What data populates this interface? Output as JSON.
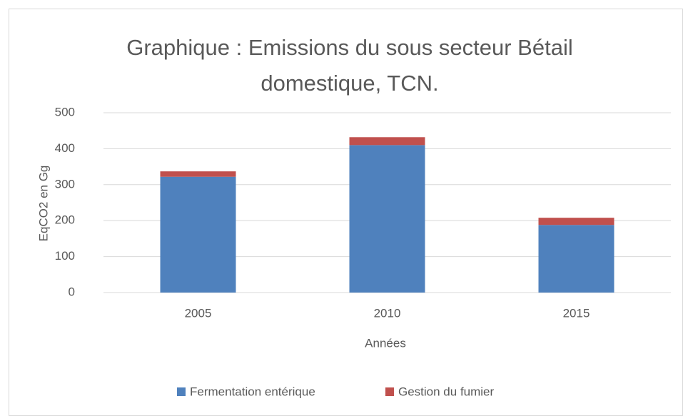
{
  "chart_data": {
    "type": "stacked_bar",
    "title": "Graphique : Emissions du sous secteur Bétail domestique, TCN.",
    "x_label": "Années",
    "y_label": "EqCO2 en Gg",
    "categories": [
      "2005",
      "2010",
      "2015"
    ],
    "series": [
      {
        "name": "Fermentation entérique",
        "color": "#4f81bd",
        "values": [
          322,
          410,
          188
        ]
      },
      {
        "name": "Gestion du fumier",
        "color": "#c0504d",
        "values": [
          15,
          22,
          20
        ]
      }
    ],
    "ylim": [
      0,
      500
    ],
    "yticks": [
      0,
      100,
      200,
      300,
      400,
      500
    ],
    "grid": true,
    "legend": "bottom"
  }
}
